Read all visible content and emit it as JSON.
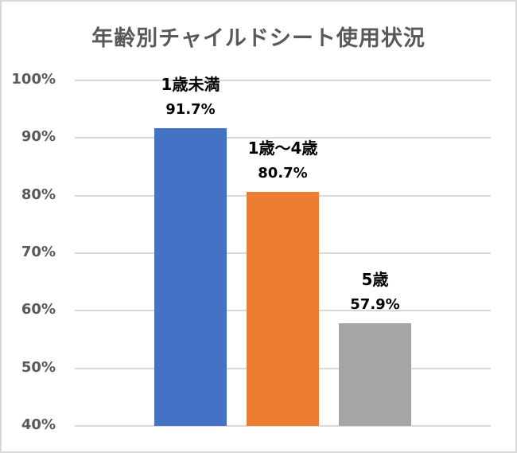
{
  "chart_data": {
    "type": "bar",
    "title": "年齢別チャイルドシート使用状況",
    "categories": [
      "1歳未満",
      "1歳～4歳",
      "5歳"
    ],
    "values": [
      91.7,
      80.7,
      57.9
    ],
    "value_labels": [
      "91.7%",
      "80.7%",
      "57.9%"
    ],
    "colors": [
      "#4472c4",
      "#ed7d31",
      "#a5a5a5"
    ],
    "xlabel": "",
    "ylabel": "",
    "ylim": [
      40,
      100
    ],
    "yticks": [
      "100%",
      "90%",
      "80%",
      "70%",
      "60%",
      "50%",
      "40%"
    ],
    "ytick_values": [
      100,
      90,
      80,
      70,
      60,
      50,
      40
    ],
    "grid": true,
    "legend": "none",
    "data_labels": "category name and value above each bar"
  }
}
